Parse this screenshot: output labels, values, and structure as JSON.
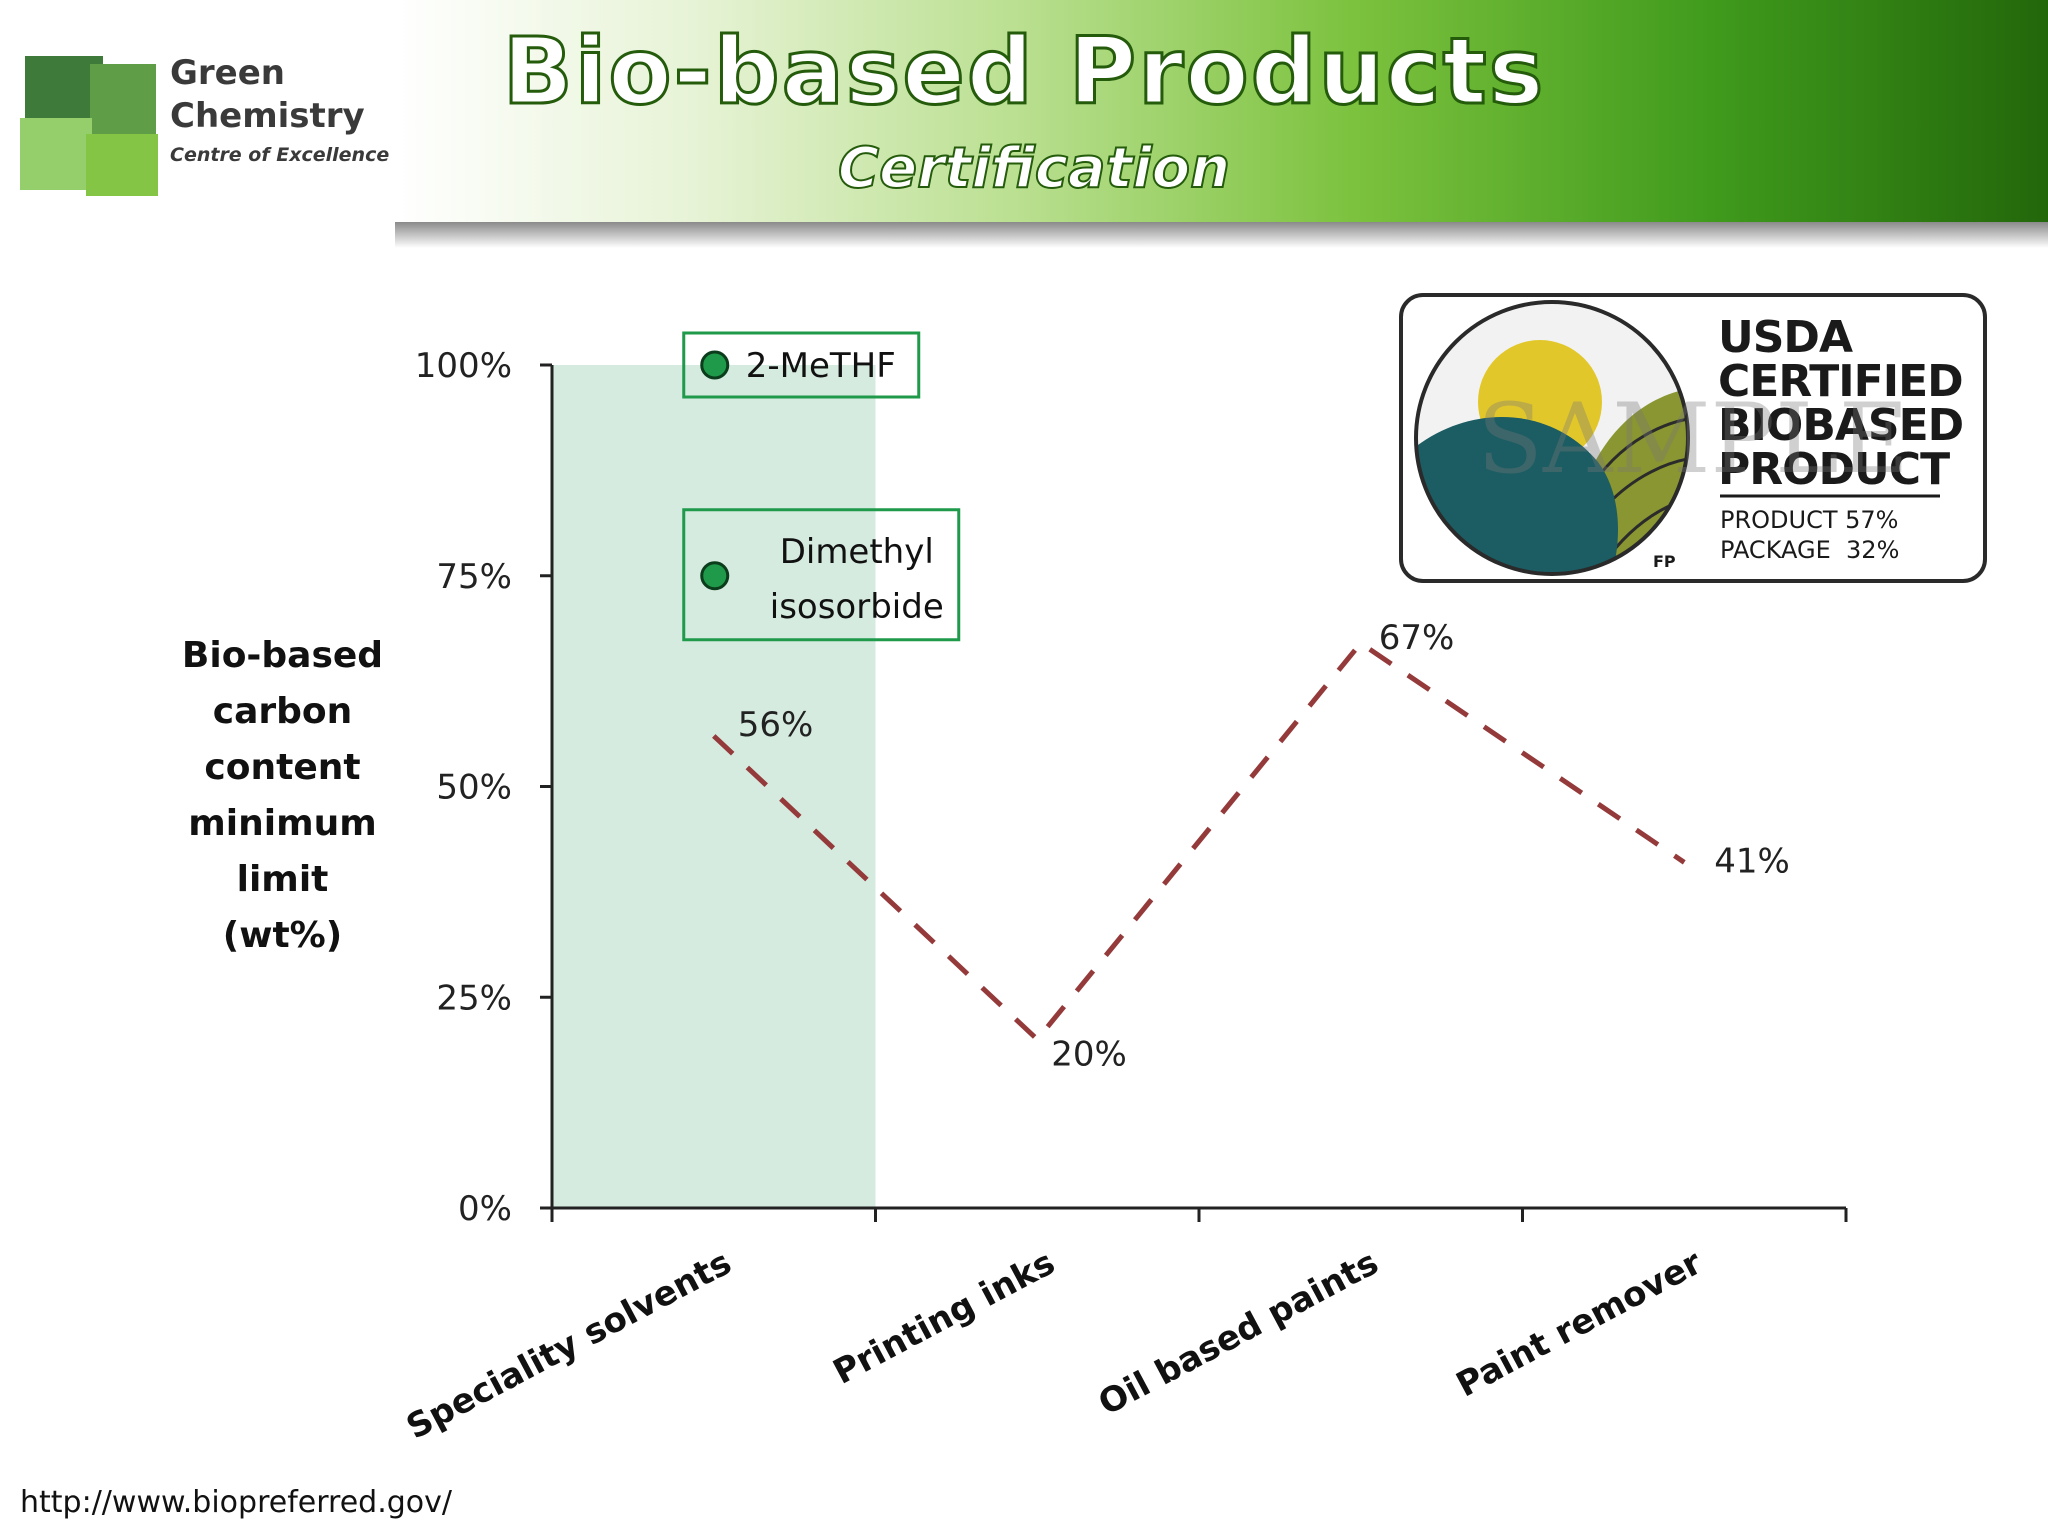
{
  "header": {
    "logo": {
      "line1": "Green",
      "line2": "Chemistry",
      "line3": "Centre of Excellence"
    },
    "title": "Bio-based Products",
    "subtitle": "Certification"
  },
  "colors": {
    "header_dark_green": "#23670b",
    "highlight_region": "#d6ebe0",
    "line_color": "#953a3a",
    "point_fill": "#1f9a4a",
    "box_border": "#1f9a4a"
  },
  "chart_data": {
    "type": "line",
    "ylabel": "Bio-based carbon content minimum limit (wt%)",
    "ylabel_lines": [
      "Bio-based",
      "carbon",
      "content",
      "minimum",
      "limit",
      "(wt%)"
    ],
    "ylim": [
      0,
      100
    ],
    "y_ticks": [
      "0%",
      "25%",
      "50%",
      "75%",
      "100%"
    ],
    "categories": [
      "Speciality solvents",
      "Printing inks",
      "Oil based paints",
      "Paint remover"
    ],
    "series": [
      {
        "values": [
          56,
          20,
          67,
          41
        ],
        "labels": [
          "56%",
          "20%",
          "67%",
          "41%"
        ],
        "style": "dashed"
      }
    ],
    "highlight": {
      "category": "Speciality solvents"
    },
    "points": [
      {
        "label": "2-MeTHF",
        "category": "Speciality solvents",
        "value": 100
      },
      {
        "label_lines": [
          "Dimethyl",
          "isosorbide"
        ],
        "category": "Speciality solvents",
        "value": 75
      }
    ],
    "grid": false
  },
  "usda_badge": {
    "lines": [
      "USDA",
      "CERTIFIED",
      "BIOBASED",
      "PRODUCT"
    ],
    "product": "PRODUCT 57%",
    "package": "PACKAGE  32%",
    "watermark": "SAMPLE",
    "fp": "FP"
  },
  "footer": {
    "url": "http://www.biopreferred.gov/"
  }
}
